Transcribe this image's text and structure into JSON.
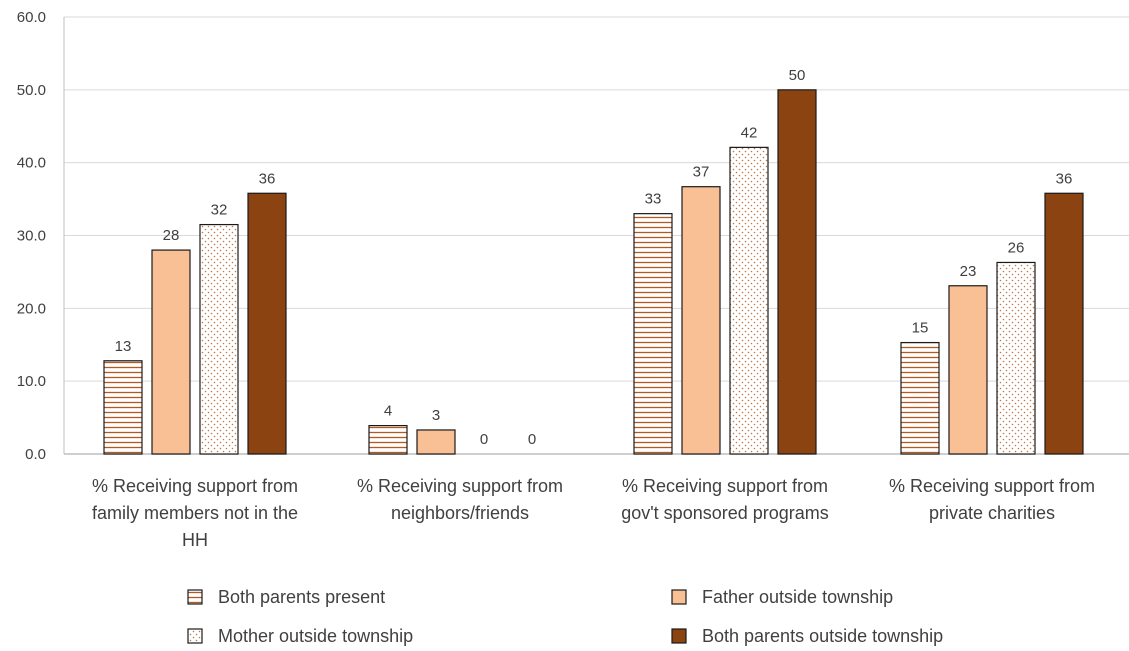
{
  "chart_data": {
    "type": "bar",
    "categories": [
      [
        "% Receiving support from",
        "family members not in the",
        "HH"
      ],
      [
        "% Receiving support from",
        "neighbors/friends"
      ],
      [
        "% Receiving support from",
        "gov't sponsored programs"
      ],
      [
        "% Receiving support from",
        "private charities"
      ]
    ],
    "series": [
      {
        "name": "Both parents present",
        "values": [
          13,
          4,
          33,
          15
        ],
        "pattern": "horizontal-stripes",
        "color": "#b35a1f"
      },
      {
        "name": "Father outside township",
        "values": [
          28,
          3,
          37,
          23
        ],
        "pattern": "solid",
        "color": "#f9bf95"
      },
      {
        "name": "Mother outside township",
        "values": [
          32,
          0,
          42,
          26
        ],
        "pattern": "dots",
        "color": "#c07a4a"
      },
      {
        "name": "Both parents outside township",
        "values": [
          36,
          0,
          50,
          36
        ],
        "pattern": "solid",
        "color": "#8b4411"
      }
    ],
    "bar_heights": [
      [
        12.8,
        3.9,
        33.0,
        15.3
      ],
      [
        28.0,
        3.3,
        36.7,
        23.1
      ],
      [
        31.5,
        0,
        42.1,
        26.3
      ],
      [
        35.8,
        0,
        50.0,
        35.8
      ]
    ],
    "yticks": [
      "0.0",
      "10.0",
      "20.0",
      "30.0",
      "40.0",
      "50.0",
      "60.0"
    ],
    "ylim": [
      0,
      60
    ],
    "grid": true,
    "legend_position": "bottom",
    "title": "",
    "xlabel": "",
    "ylabel": ""
  }
}
